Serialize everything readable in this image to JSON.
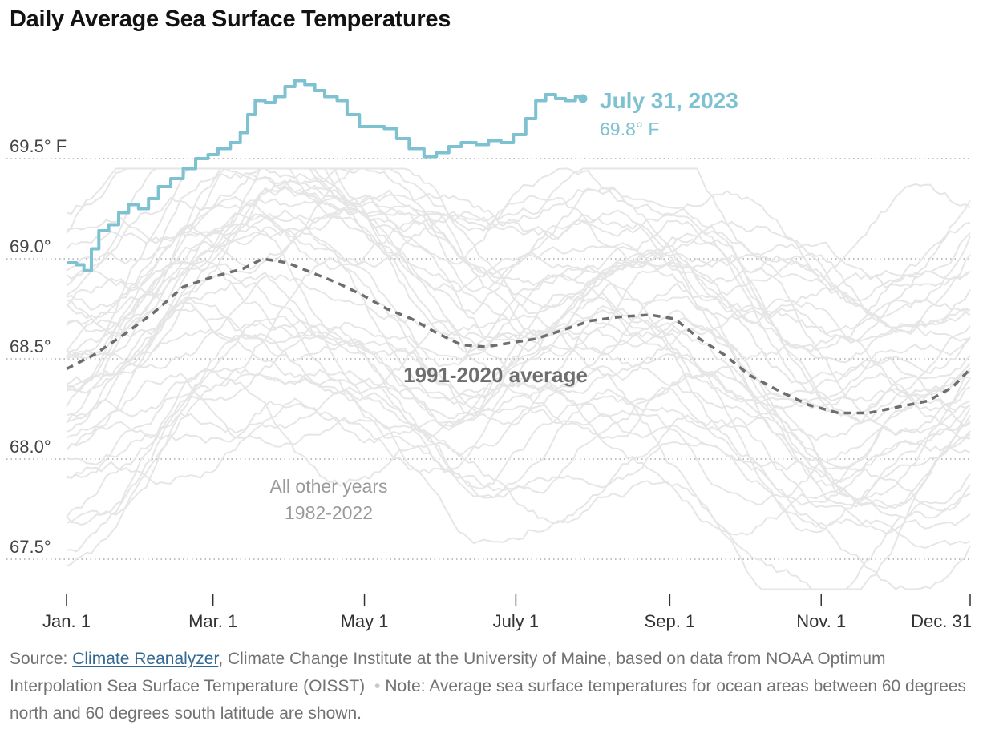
{
  "title": "Daily Average Sea Surface Temperatures",
  "colors": {
    "highlight": "#7ec1d1",
    "average": "#6e6e6e",
    "other_years": "#e6e6e6",
    "grid": "#aaaaaa",
    "other_years_label": "#9a9a9a"
  },
  "chart_data": {
    "type": "line",
    "y_axis": {
      "ticks": [
        {
          "value": 67.5,
          "label": "67.5°"
        },
        {
          "value": 68.0,
          "label": "68.0°"
        },
        {
          "value": 68.5,
          "label": "68.5°"
        },
        {
          "value": 69.0,
          "label": "69.0°"
        },
        {
          "value": 69.5,
          "label": "69.5° F"
        }
      ],
      "range": [
        67.3,
        70.0
      ],
      "grid": "dotted"
    },
    "x_axis": {
      "ticks": [
        {
          "day": 1,
          "label": "Jan. 1"
        },
        {
          "day": 60,
          "label": "Mar. 1"
        },
        {
          "day": 121,
          "label": "May 1"
        },
        {
          "day": 182,
          "label": "July 1"
        },
        {
          "day": 244,
          "label": "Sep. 1"
        },
        {
          "day": 305,
          "label": "Nov. 1"
        },
        {
          "day": 365,
          "label": "Dec. 31"
        }
      ],
      "range": [
        1,
        365
      ]
    },
    "highlight_series": {
      "name": "July 31, 2023",
      "end_label": "69.8° F",
      "points": [
        [
          1,
          68.98
        ],
        [
          5,
          68.97
        ],
        [
          8,
          68.94
        ],
        [
          11,
          69.05
        ],
        [
          14,
          69.14
        ],
        [
          18,
          69.17
        ],
        [
          22,
          69.23
        ],
        [
          26,
          69.27
        ],
        [
          30,
          69.25
        ],
        [
          34,
          69.3
        ],
        [
          38,
          69.36
        ],
        [
          43,
          69.4
        ],
        [
          48,
          69.45
        ],
        [
          53,
          69.5
        ],
        [
          58,
          69.52
        ],
        [
          62,
          69.55
        ],
        [
          67,
          69.58
        ],
        [
          71,
          69.63
        ],
        [
          74,
          69.72
        ],
        [
          77,
          69.79
        ],
        [
          81,
          69.78
        ],
        [
          85,
          69.81
        ],
        [
          89,
          69.86
        ],
        [
          93,
          69.89
        ],
        [
          97,
          69.87
        ],
        [
          101,
          69.84
        ],
        [
          105,
          69.81
        ],
        [
          110,
          69.79
        ],
        [
          114,
          69.72
        ],
        [
          119,
          69.66
        ],
        [
          124,
          69.66
        ],
        [
          129,
          69.65
        ],
        [
          134,
          69.6
        ],
        [
          139,
          69.55
        ],
        [
          145,
          69.51
        ],
        [
          150,
          69.53
        ],
        [
          155,
          69.56
        ],
        [
          160,
          69.58
        ],
        [
          166,
          69.57
        ],
        [
          171,
          69.59
        ],
        [
          176,
          69.58
        ],
        [
          181,
          69.62
        ],
        [
          186,
          69.7
        ],
        [
          190,
          69.79
        ],
        [
          194,
          69.82
        ],
        [
          198,
          69.8
        ],
        [
          202,
          69.79
        ],
        [
          206,
          69.81
        ],
        [
          209,
          69.8
        ]
      ]
    },
    "average_series": {
      "name": "1991-2020 average",
      "points": [
        [
          1,
          68.45
        ],
        [
          12,
          68.52
        ],
        [
          24,
          68.62
        ],
        [
          36,
          68.73
        ],
        [
          48,
          68.86
        ],
        [
          60,
          68.91
        ],
        [
          72,
          68.95
        ],
        [
          80,
          69.0
        ],
        [
          90,
          68.98
        ],
        [
          100,
          68.93
        ],
        [
          110,
          68.88
        ],
        [
          120,
          68.82
        ],
        [
          130,
          68.75
        ],
        [
          140,
          68.7
        ],
        [
          150,
          68.63
        ],
        [
          160,
          68.57
        ],
        [
          170,
          68.56
        ],
        [
          180,
          68.58
        ],
        [
          190,
          68.6
        ],
        [
          200,
          68.64
        ],
        [
          212,
          68.69
        ],
        [
          224,
          68.71
        ],
        [
          236,
          68.72
        ],
        [
          246,
          68.7
        ],
        [
          256,
          68.6
        ],
        [
          266,
          68.52
        ],
        [
          276,
          68.42
        ],
        [
          288,
          68.34
        ],
        [
          300,
          68.27
        ],
        [
          312,
          68.23
        ],
        [
          324,
          68.23
        ],
        [
          336,
          68.26
        ],
        [
          348,
          68.29
        ],
        [
          358,
          68.36
        ],
        [
          365,
          68.45
        ]
      ]
    },
    "other_years_label": [
      "All other years",
      "1982-2022"
    ],
    "other_years_count": 41
  },
  "footer": {
    "source_prefix": "Source: ",
    "source_link": "Climate Reanalyzer",
    "source_rest": ", Climate Change Institute at the University of Maine, based on data from NOAA Optimum Interpolation Sea Surface Temperature (OISST)",
    "separator": "•",
    "note": "Note: Average sea surface temperatures for ocean areas between 60 degrees north and 60 degrees south latitude are shown."
  }
}
